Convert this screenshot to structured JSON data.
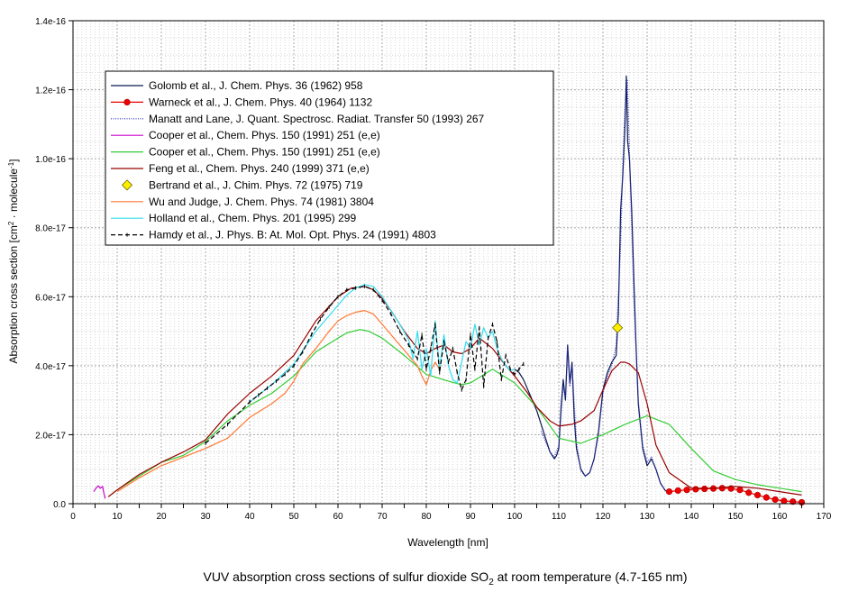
{
  "chart_data": {
    "type": "line",
    "caption": {
      "before": "VUV absorption cross sections of sulfur dioxide SO",
      "sub": "2",
      "after": " at room temperature (4.7-165 nm)"
    },
    "xlabel": "Wavelength [nm]",
    "ylabel": {
      "main": "Absorption cross section [cm",
      "sup1": "2",
      "mid": " · molecule",
      "sup2": "-1",
      "end": "]"
    },
    "xlim": [
      0,
      170
    ],
    "ylim": [
      0,
      1.4e-16
    ],
    "x_ticks": [
      0,
      5,
      10,
      15,
      20,
      25,
      30,
      35,
      40,
      45,
      50,
      55,
      60,
      65,
      70,
      75,
      80,
      85,
      90,
      95,
      100,
      105,
      110,
      115,
      120,
      125,
      130,
      135,
      140,
      145,
      150,
      155,
      160,
      165,
      170
    ],
    "x_tick_labels": [
      "0",
      "",
      "10",
      "",
      "20",
      "",
      "30",
      "",
      "40",
      "",
      "50",
      "",
      "60",
      "",
      "70",
      "",
      "80",
      "",
      "90",
      "",
      "100",
      "",
      "110",
      "",
      "120",
      "",
      "130",
      "",
      "140",
      "",
      "150",
      "",
      "160",
      "",
      "170"
    ],
    "y_ticks": [
      0,
      2e-17,
      4e-17,
      6e-17,
      8e-17,
      1e-16,
      1.2e-16,
      1.4e-16
    ],
    "y_tick_labels": [
      "0.0",
      "2.0e-17",
      "4.0e-17",
      "6.0e-17",
      "8.0e-17",
      "1.0e-16",
      "1.2e-16",
      "1.4e-16"
    ],
    "grid": true,
    "legend_position": "top-left",
    "series": [
      {
        "name": "Golomb et al., J. Chem. Phys. 36 (1962) 958",
        "color": "#0a1a50",
        "style": "solid",
        "marker": "none",
        "x": [
          100,
          101,
          102,
          103,
          104,
          105,
          106,
          107,
          108,
          109,
          109.5,
          110,
          110.5,
          111,
          111.5,
          112,
          112.5,
          113,
          113.5,
          114,
          115,
          116,
          117,
          118,
          119,
          120,
          121,
          122,
          123,
          123.5,
          124,
          124.5,
          125,
          125.3,
          125.6,
          126,
          126.5,
          127,
          127.5,
          128,
          129,
          130,
          131,
          132,
          133,
          134,
          135
        ],
        "values": [
          3.9e-17,
          3.8e-17,
          3.6e-17,
          3.3e-17,
          3e-17,
          2.7e-17,
          2.3e-17,
          1.9e-17,
          1.5e-17,
          1.3e-17,
          1.4e-17,
          1.6e-17,
          2.8e-17,
          3.6e-17,
          3e-17,
          4.6e-17,
          3.5e-17,
          4.1e-17,
          2.5e-17,
          1.6e-17,
          1e-17,
          8e-18,
          9e-18,
          1.3e-17,
          2.1e-17,
          3.3e-17,
          3.8e-17,
          4.1e-17,
          4.3e-17,
          5.5e-17,
          8.5e-17,
          9.5e-17,
          1.1e-16,
          1.24e-16,
          1.05e-16,
          1e-16,
          8.5e-17,
          6.5e-17,
          4.5e-17,
          2.9e-17,
          1.6e-17,
          1.1e-17,
          1.3e-17,
          1e-17,
          6e-18,
          4e-18,
          3e-18
        ]
      },
      {
        "name": "Warneck et al., J. Chem. Phys. 40 (1964) 1132",
        "color": "#ee0000",
        "style": "solid",
        "marker": "circle",
        "x": [
          135,
          137,
          139,
          141,
          143,
          145,
          147,
          149,
          151,
          153,
          155,
          157,
          159,
          161,
          163,
          165
        ],
        "values": [
          3.5e-18,
          3.8e-18,
          4e-18,
          4.2e-18,
          4.3e-18,
          4.4e-18,
          4.5e-18,
          4.4e-18,
          4e-18,
          3.2e-18,
          2.5e-18,
          1.8e-18,
          1.2e-18,
          8e-19,
          6e-19,
          4e-19
        ]
      },
      {
        "name": "Manatt and Lane, J. Quant. Spectrosc. Radiat. Transfer 50 (1993) 267",
        "color": "#3030c0",
        "style": "dotted",
        "marker": "none",
        "x": [
          106,
          107,
          108,
          109,
          110,
          111,
          111.5,
          112,
          112.5,
          113,
          114,
          115,
          116,
          117,
          118,
          119,
          120,
          121,
          122,
          123,
          124,
          124.5,
          125,
          125.5,
          126,
          126.5,
          127,
          128,
          129,
          130,
          131,
          132,
          133,
          134
        ],
        "values": [
          2.1e-17,
          1.8e-17,
          1.5e-17,
          1.35e-17,
          1.7e-17,
          3.4e-17,
          3.1e-17,
          4.5e-17,
          3.4e-17,
          4e-17,
          1.8e-17,
          9.5e-18,
          8e-18,
          9e-18,
          1.3e-17,
          2e-17,
          3.2e-17,
          3.7e-17,
          4e-17,
          4.6e-17,
          7.5e-17,
          9.8e-17,
          1.15e-16,
          1.23e-16,
          1.02e-16,
          8e-17,
          6e-17,
          3e-17,
          1.7e-17,
          1.2e-17,
          1.35e-17,
          1e-17,
          6e-18,
          4e-18
        ]
      },
      {
        "name": "Cooper et al., Chem. Phys. 150 (1991) 251 (e,e)",
        "color": "#cc00cc",
        "style": "solid",
        "marker": "none",
        "x": [
          4.7,
          5.2,
          5.7,
          6.2,
          6.7,
          7.0,
          7.3
        ],
        "values": [
          3.5e-18,
          4.5e-18,
          5.2e-18,
          4.5e-18,
          5e-18,
          3e-18,
          1.5e-18
        ]
      },
      {
        "name": "Cooper et al., Chem. Phys. 150 (1991) 251 (e,e)",
        "color": "#33cc33",
        "style": "solid",
        "marker": "none",
        "x": [
          8,
          10,
          15,
          20,
          25,
          30,
          35,
          40,
          45,
          50,
          55,
          60,
          62,
          65,
          67,
          70,
          72,
          75,
          80,
          85,
          88,
          90,
          95,
          100,
          105,
          110,
          115,
          120,
          125,
          130,
          135,
          140,
          145,
          150,
          155,
          160,
          165
        ],
        "values": [
          2e-18,
          4e-18,
          8e-18,
          1.2e-17,
          1.4e-17,
          1.8e-17,
          2.4e-17,
          2.85e-17,
          3.2e-17,
          3.7e-17,
          4.4e-17,
          4.8e-17,
          4.95e-17,
          5.05e-17,
          5e-17,
          4.8e-17,
          4.6e-17,
          4.3e-17,
          3.75e-17,
          3.55e-17,
          3.45e-17,
          3.5e-17,
          3.9e-17,
          3.5e-17,
          2.8e-17,
          1.9e-17,
          1.75e-17,
          2e-17,
          2.3e-17,
          2.55e-17,
          2.3e-17,
          1.6e-17,
          9.5e-18,
          7e-18,
          5.5e-18,
          4.5e-18,
          3.5e-18
        ]
      },
      {
        "name": "Feng et al., Chem. Phys. 240 (1999)  371 (e,e)",
        "color": "#990000",
        "style": "solid",
        "marker": "none",
        "x": [
          8,
          10,
          15,
          20,
          25,
          30,
          35,
          40,
          45,
          50,
          55,
          60,
          63,
          66,
          68,
          70,
          72,
          75,
          78,
          80,
          82,
          84,
          86,
          88,
          90,
          92,
          95,
          98,
          100,
          103,
          105,
          108,
          110,
          113,
          115,
          118,
          120,
          122,
          124,
          125,
          126,
          128,
          130,
          132,
          135,
          140,
          145,
          150,
          155,
          160,
          165
        ],
        "values": [
          2e-18,
          4e-18,
          8.5e-18,
          1.2e-17,
          1.5e-17,
          1.85e-17,
          2.6e-17,
          3.2e-17,
          3.7e-17,
          4.3e-17,
          5.3e-17,
          6e-17,
          6.25e-17,
          6.3e-17,
          6.2e-17,
          5.95e-17,
          5.6e-17,
          5e-17,
          4.5e-17,
          4.35e-17,
          4.5e-17,
          4.6e-17,
          4.4e-17,
          4.35e-17,
          4.5e-17,
          4.8e-17,
          4.5e-17,
          4e-17,
          3.7e-17,
          3.2e-17,
          2.8e-17,
          2.4e-17,
          2.25e-17,
          2.3e-17,
          2.4e-17,
          2.7e-17,
          3.3e-17,
          3.85e-17,
          4.1e-17,
          4.1e-17,
          4.05e-17,
          3.8e-17,
          2.9e-17,
          1.7e-17,
          9e-18,
          4.5e-18,
          4.5e-18,
          5e-18,
          4.5e-18,
          3.5e-18,
          2.5e-18
        ]
      },
      {
        "name": "Bertrand et al., J. Chim. Phys. 72 (1975) 719",
        "color": "#ffee00",
        "style": "none",
        "marker": "diamond",
        "x": [
          123.3
        ],
        "values": [
          5.1e-17
        ]
      },
      {
        "name": "Wu and Judge, J. Chem. Phys. 74 (1981) 3804",
        "color": "#ff7733",
        "style": "solid",
        "marker": "none",
        "x": [
          10,
          15,
          20,
          25,
          30,
          35,
          40,
          45,
          48,
          50,
          52,
          55,
          58,
          60,
          62,
          64,
          66,
          68,
          70,
          72,
          74,
          76,
          78,
          79,
          80,
          81,
          82,
          83
        ],
        "values": [
          3.5e-18,
          7.5e-18,
          1.1e-17,
          1.35e-17,
          1.6e-17,
          1.9e-17,
          2.5e-17,
          2.9e-17,
          3.2e-17,
          3.55e-17,
          4.05e-17,
          4.5e-17,
          5e-17,
          5.3e-17,
          5.45e-17,
          5.55e-17,
          5.6e-17,
          5.5e-17,
          5.2e-17,
          4.9e-17,
          4.6e-17,
          4.3e-17,
          4e-17,
          3.7e-17,
          3.45e-17,
          3.85e-17,
          4.1e-17,
          3.9e-17
        ]
      },
      {
        "name": "Holland et al., Chem. Phys. 201 (1995) 299",
        "color": "#33ddee",
        "style": "solid",
        "marker": "none",
        "x": [
          40,
          45,
          50,
          55,
          60,
          62,
          64,
          66,
          68,
          70,
          72,
          74,
          76,
          77,
          78,
          79,
          80,
          81,
          82,
          83,
          84,
          85,
          86,
          87,
          88,
          89,
          90,
          91,
          92,
          93,
          94,
          95,
          96,
          97,
          98,
          99,
          100
        ],
        "values": [
          2.95e-17,
          3.45e-17,
          4.05e-17,
          5e-17,
          5.75e-17,
          6.05e-17,
          6.25e-17,
          6.35e-17,
          6.3e-17,
          6e-17,
          5.6e-17,
          5.2e-17,
          4.75e-17,
          4.2e-17,
          5e-17,
          3.9e-17,
          4.5e-17,
          3.7e-17,
          5.3e-17,
          3.9e-17,
          4.9e-17,
          4e-17,
          3.6e-17,
          3.5e-17,
          4.1e-17,
          4.7e-17,
          4.5e-17,
          5.2e-17,
          4.6e-17,
          5.1e-17,
          4.8e-17,
          5e-17,
          4.5e-17,
          4.2e-17,
          4e-17,
          3.85e-17,
          3.9e-17
        ]
      },
      {
        "name": "Hamdy et al., J. Phys. B: At. Mol. Opt. Phys. 24 (1991) 4803",
        "color": "#000000",
        "style": "dashed",
        "marker": "tick",
        "x": [
          30,
          35,
          40,
          42,
          44,
          46,
          48,
          50,
          52,
          54,
          56,
          58,
          60,
          62,
          64,
          66,
          68,
          70,
          72,
          74,
          76,
          78,
          79,
          80,
          81,
          82,
          83,
          84,
          85,
          86,
          87,
          88,
          89,
          90,
          91,
          92,
          93,
          94,
          95,
          96,
          97,
          98,
          99,
          100,
          101,
          102
        ],
        "values": [
          1.75e-17,
          2.3e-17,
          2.95e-17,
          3.15e-17,
          3.35e-17,
          3.55e-17,
          3.75e-17,
          4e-17,
          4.4e-17,
          4.9e-17,
          5.35e-17,
          5.7e-17,
          6e-17,
          6.2e-17,
          6.25e-17,
          6.3e-17,
          6.2e-17,
          5.9e-17,
          5.5e-17,
          5e-17,
          4.6e-17,
          4.2e-17,
          4.9e-17,
          3.9e-17,
          4.5e-17,
          5.2e-17,
          3.8e-17,
          4.7e-17,
          4.1e-17,
          4.5e-17,
          3.8e-17,
          3.3e-17,
          3.6e-17,
          4.9e-17,
          3.9e-17,
          5.1e-17,
          3.4e-17,
          4.8e-17,
          5.2e-17,
          4.7e-17,
          3.6e-17,
          4.3e-17,
          3.9e-17,
          3.75e-17,
          3.9e-17,
          4.05e-17
        ]
      }
    ]
  }
}
